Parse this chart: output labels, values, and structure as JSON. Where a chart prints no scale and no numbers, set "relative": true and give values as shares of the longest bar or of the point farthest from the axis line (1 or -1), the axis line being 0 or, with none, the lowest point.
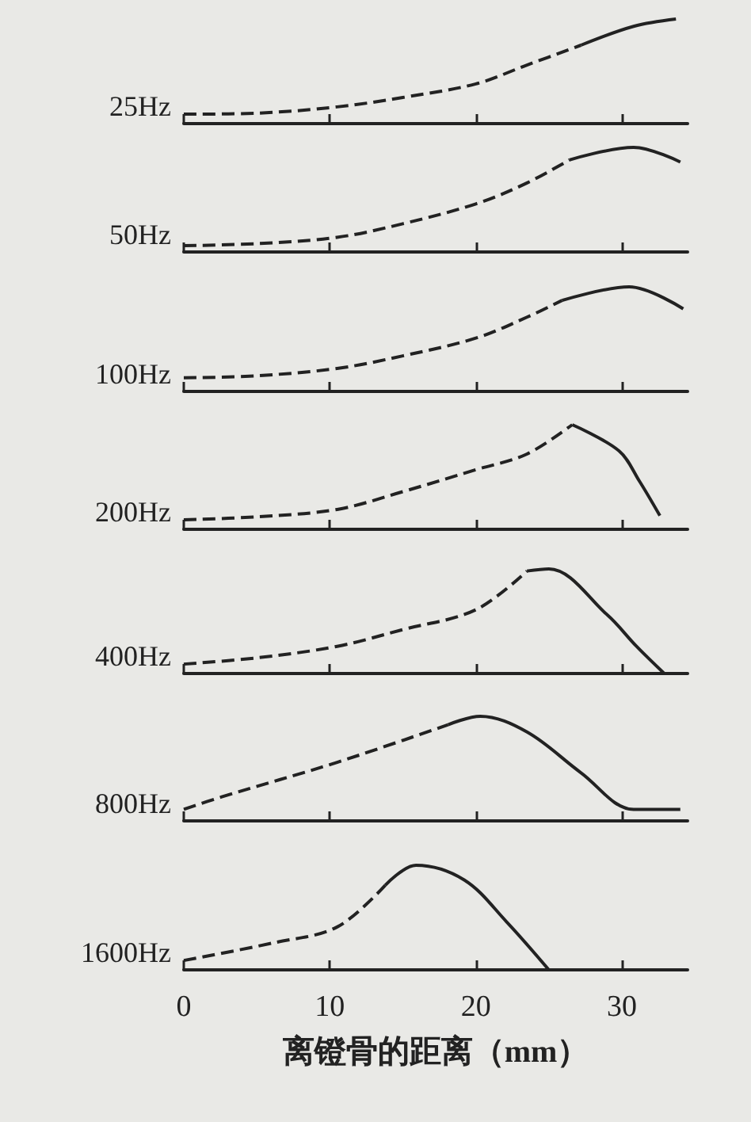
{
  "chart_data": [
    {
      "type": "line",
      "ylabel": "25Hz",
      "relative": true,
      "xlim": [
        0,
        34.5
      ],
      "xticks": [
        0,
        10,
        20,
        30
      ],
      "tick_labels": false,
      "grid": false,
      "marker": "none",
      "series": [
        {
          "color": "#222222",
          "line_style": "dashed",
          "x": [
            0,
            5,
            10.5,
            15,
            20,
            23.5,
            27.2
          ],
          "values": [
            0.09,
            0.1,
            0.16,
            0.25,
            0.38,
            0.56,
            0.75
          ]
        },
        {
          "color": "#222222",
          "line_style": "solid",
          "x": [
            27.2,
            30.8,
            33.7
          ],
          "values": [
            0.75,
            0.93,
            1
          ]
        }
      ]
    },
    {
      "type": "line",
      "ylabel": "50Hz",
      "relative": true,
      "xlim": [
        0,
        34.5
      ],
      "xticks": [
        0,
        10,
        20,
        30
      ],
      "tick_labels": false,
      "grid": false,
      "marker": "none",
      "series": [
        {
          "color": "#222222",
          "line_style": "dashed",
          "x": [
            0,
            5,
            10.5,
            15,
            20,
            23.5,
            26.4
          ],
          "values": [
            0.06,
            0.08,
            0.14,
            0.27,
            0.46,
            0.66,
            0.88
          ]
        },
        {
          "color": "#222222",
          "line_style": "solid",
          "x": [
            26.4,
            30.8,
            34
          ],
          "values": [
            0.88,
            1,
            0.86
          ]
        }
      ]
    },
    {
      "type": "line",
      "ylabel": "100Hz",
      "relative": true,
      "xlim": [
        0,
        34.5
      ],
      "xticks": [
        0,
        10,
        20,
        30
      ],
      "tick_labels": false,
      "grid": false,
      "marker": "none",
      "series": [
        {
          "color": "#222222",
          "line_style": "dashed",
          "x": [
            0,
            5,
            10.5,
            15,
            20,
            23.5,
            25.9
          ],
          "values": [
            0.13,
            0.15,
            0.22,
            0.34,
            0.51,
            0.71,
            0.87
          ]
        },
        {
          "color": "#222222",
          "line_style": "solid",
          "x": [
            25.9,
            30.5,
            34.2
          ],
          "values": [
            0.87,
            1,
            0.79
          ]
        }
      ]
    },
    {
      "type": "line",
      "ylabel": "200Hz",
      "relative": true,
      "xlim": [
        0,
        34.5
      ],
      "xticks": [
        0,
        10,
        20,
        30
      ],
      "tick_labels": false,
      "grid": false,
      "marker": "none",
      "series": [
        {
          "color": "#222222",
          "line_style": "dashed",
          "x": [
            0,
            5,
            10.5,
            15,
            20,
            23.5,
            26.6
          ],
          "values": [
            0.09,
            0.12,
            0.19,
            0.36,
            0.57,
            0.72,
            1
          ]
        },
        {
          "color": "#222222",
          "line_style": "solid",
          "x": [
            26.6,
            29.8,
            31.2,
            32.6
          ],
          "values": [
            1,
            0.75,
            0.46,
            0.13
          ]
        }
      ]
    },
    {
      "type": "line",
      "ylabel": "400Hz",
      "relative": true,
      "xlim": [
        0,
        34.5
      ],
      "xticks": [
        0,
        10,
        20,
        30
      ],
      "tick_labels": false,
      "grid": false,
      "marker": "none",
      "series": [
        {
          "color": "#222222",
          "line_style": "dashed",
          "x": [
            0,
            5,
            10.5,
            15,
            20,
            23.5
          ],
          "values": [
            0.09,
            0.15,
            0.26,
            0.42,
            0.61,
            0.98
          ]
        },
        {
          "color": "#222222",
          "line_style": "solid",
          "x": [
            23.5,
            25,
            29,
            31,
            32.9
          ],
          "values": [
            0.98,
            1,
            0.56,
            0.26,
            0
          ]
        }
      ]
    },
    {
      "type": "line",
      "ylabel": "800Hz",
      "relative": true,
      "xlim": [
        0,
        34.5
      ],
      "xticks": [
        0,
        10,
        20,
        30
      ],
      "tick_labels": false,
      "grid": false,
      "marker": "none",
      "series": [
        {
          "color": "#222222",
          "line_style": "dashed",
          "x": [
            0,
            2.6,
            10.5,
            18.1
          ],
          "values": [
            0.11,
            0.23,
            0.56,
            0.92
          ]
        },
        {
          "color": "#222222",
          "line_style": "solid",
          "x": [
            18.1,
            20.3,
            23.5,
            27.2,
            30.8,
            34
          ],
          "values": [
            0.92,
            1,
            0.85,
            0.46,
            0.11,
            0.11
          ]
        }
      ]
    },
    {
      "type": "line",
      "ylabel": "1600Hz",
      "xlabel": "离镫骨的距离（mm）",
      "relative": true,
      "xlim": [
        0,
        34.5
      ],
      "xticks": [
        0,
        10,
        20,
        30
      ],
      "tick_labels": "x",
      "grid": false,
      "marker": "none",
      "series": [
        {
          "color": "#222222",
          "line_style": "dashed",
          "x": [
            0,
            6.2,
            10.5,
            13.8
          ],
          "values": [
            0.09,
            0.26,
            0.41,
            0.81
          ]
        },
        {
          "color": "#222222",
          "line_style": "solid",
          "x": [
            13.8,
            15.9,
            19.2,
            22.1,
            25
          ],
          "values": [
            0.81,
            1,
            0.86,
            0.46,
            0
          ]
        }
      ]
    }
  ]
}
